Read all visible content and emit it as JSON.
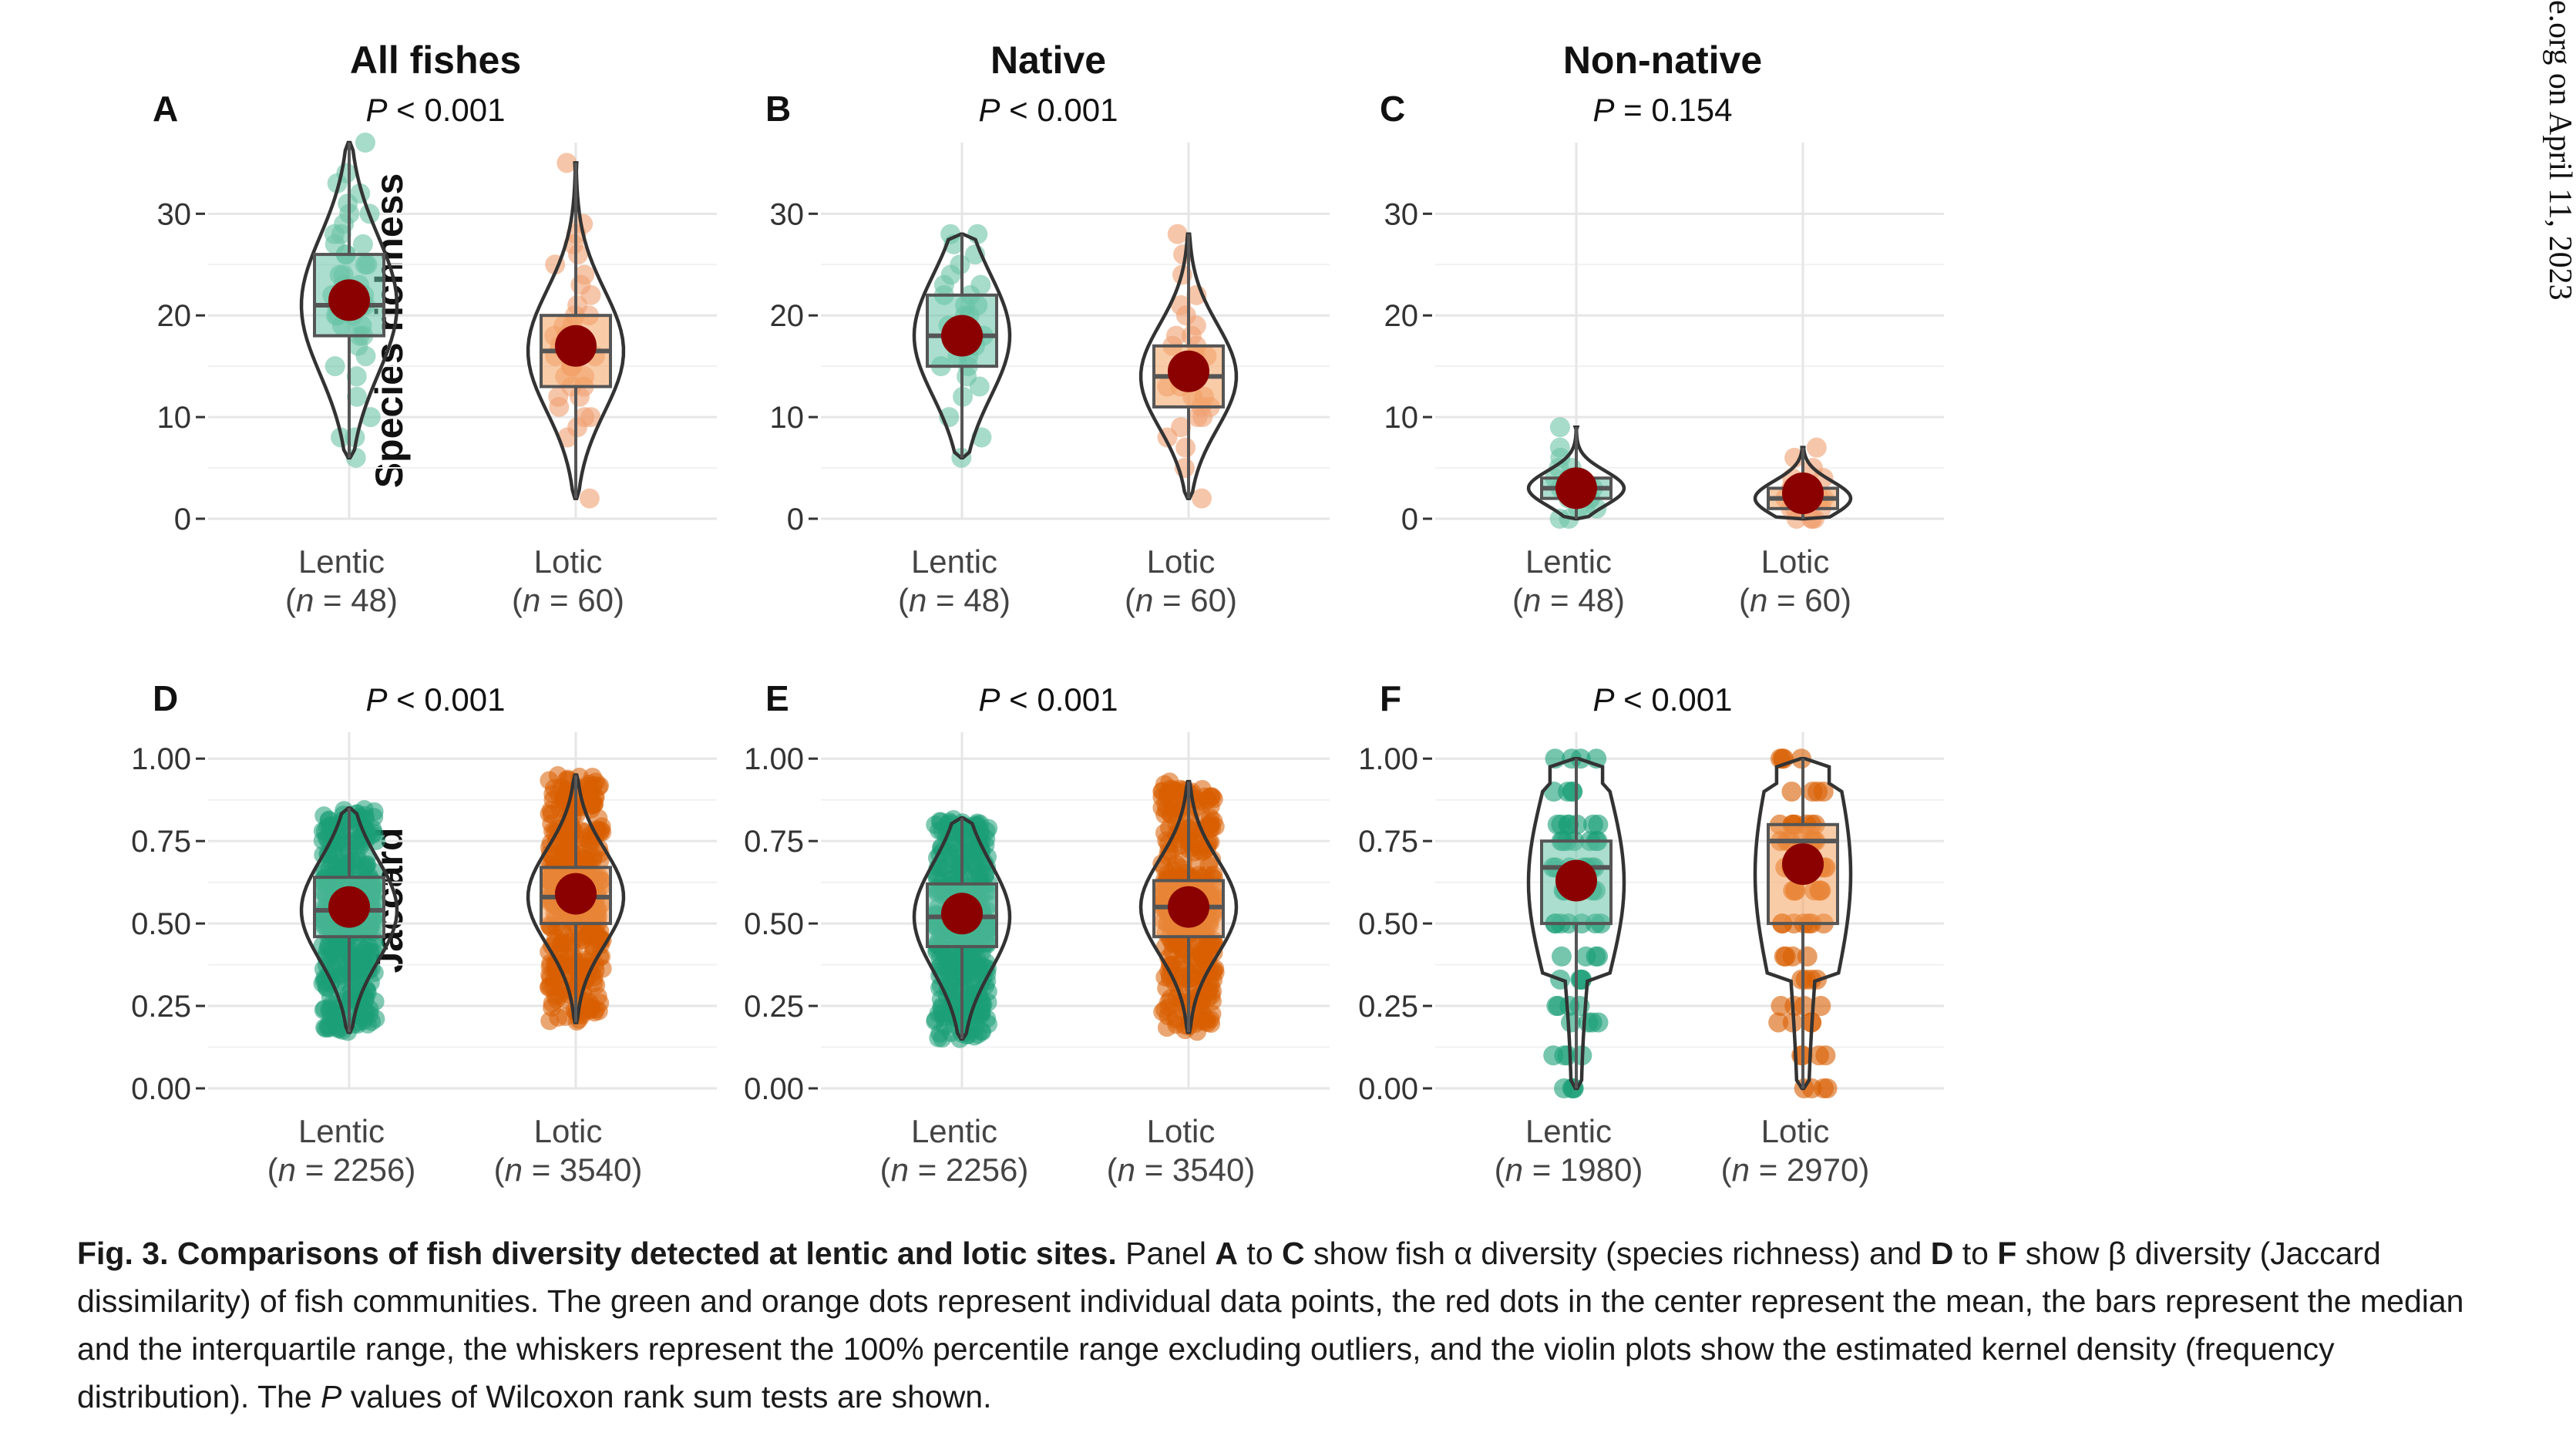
{
  "side_note": "e.org on April 11, 2023",
  "colors": {
    "lentic": "#1b9e77",
    "lotic": "#d95f02",
    "mean": "#8b0000",
    "grid": "#e6e6e6",
    "outline": "#333333"
  },
  "row_labels": {
    "top": "Species richness",
    "bottom": "Jaccard"
  },
  "caption": {
    "title": "Fig. 3. Comparisons of fish diversity detected at lentic and lotic sites.",
    "seg1": " Panel ",
    "b1": "A",
    "seg2": " to ",
    "b2": "C",
    "seg3": " show fish α diversity (species richness) and ",
    "b3": "D",
    "seg4": " to ",
    "b4": "F",
    "seg5": " show β diversity (Jaccard dissimilarity) of fish communities. The green and orange dots represent individual data points, the red dots in the center represent the mean, the bars represent the median and the interquartile range, the whiskers represent the 100% percentile range excluding outliers, and the violin plots show the estimated kernel density (frequency distribution). The ",
    "i1": "P",
    "seg6": " values of Wilcoxon rank sum tests are shown."
  },
  "chart_data": [
    {
      "type": "violin",
      "panel": "A",
      "title": "All fishes",
      "p_prefix": "P",
      "p_text": " < 0.001",
      "ylabel": "Species richness",
      "ylim": [
        0,
        37
      ],
      "yticks": [
        "0",
        "10",
        "20",
        "30"
      ],
      "ytick_values": [
        0,
        10,
        20,
        30
      ],
      "groups": [
        {
          "label": "Lentic",
          "n_label": "n",
          "n_text": " = 48",
          "series": "lentic",
          "min": 6,
          "q1": 18,
          "median": 21,
          "q3": 26,
          "max": 37,
          "mean": 21.5,
          "points": [
            6,
            8,
            8,
            10,
            12,
            14,
            15,
            16,
            17,
            18,
            18,
            19,
            19,
            20,
            20,
            20,
            21,
            21,
            21,
            22,
            22,
            22,
            23,
            23,
            24,
            24,
            25,
            25,
            26,
            26,
            27,
            27,
            28,
            28,
            29,
            30,
            30,
            31,
            32,
            33,
            34,
            37
          ]
        },
        {
          "label": "Lotic",
          "n_label": "n",
          "n_text": " = 60",
          "series": "lotic",
          "min": 2,
          "q1": 13,
          "median": 16.5,
          "q3": 20,
          "max": 35,
          "mean": 17,
          "points": [
            2,
            8,
            9,
            10,
            10,
            11,
            12,
            12,
            13,
            13,
            14,
            14,
            15,
            15,
            15,
            16,
            16,
            16,
            17,
            17,
            17,
            18,
            18,
            18,
            19,
            19,
            20,
            20,
            21,
            22,
            23,
            24,
            25,
            26,
            27,
            28,
            29,
            35
          ]
        }
      ]
    },
    {
      "type": "violin",
      "panel": "B",
      "title": "Native",
      "p_prefix": "P",
      "p_text": " < 0.001",
      "ylabel": "",
      "ylim": [
        0,
        37
      ],
      "yticks": [
        "0",
        "10",
        "20",
        "30"
      ],
      "ytick_values": [
        0,
        10,
        20,
        30
      ],
      "groups": [
        {
          "label": "Lentic",
          "n_label": "n",
          "n_text": " = 48",
          "series": "lentic",
          "min": 6,
          "q1": 15,
          "median": 18,
          "q3": 22,
          "max": 28,
          "mean": 18,
          "points": [
            6,
            8,
            10,
            12,
            13,
            14,
            15,
            15,
            16,
            16,
            17,
            17,
            18,
            18,
            18,
            19,
            19,
            20,
            20,
            21,
            21,
            22,
            22,
            23,
            23,
            24,
            25,
            26,
            27,
            28,
            28
          ]
        },
        {
          "label": "Lotic",
          "n_label": "n",
          "n_text": " = 60",
          "series": "lotic",
          "min": 2,
          "q1": 11,
          "median": 14,
          "q3": 17,
          "max": 28,
          "mean": 14.5,
          "points": [
            2,
            5,
            7,
            8,
            9,
            10,
            10,
            11,
            11,
            12,
            12,
            13,
            13,
            14,
            14,
            14,
            15,
            15,
            15,
            16,
            16,
            17,
            17,
            18,
            18,
            19,
            20,
            21,
            22,
            24,
            26,
            28
          ]
        }
      ]
    },
    {
      "type": "violin",
      "panel": "C",
      "title": "Non-native",
      "p_prefix": "P",
      "p_text": " = 0.154",
      "ylabel": "",
      "ylim": [
        0,
        37
      ],
      "yticks": [
        "0",
        "10",
        "20",
        "30"
      ],
      "ytick_values": [
        0,
        10,
        20,
        30
      ],
      "groups": [
        {
          "label": "Lentic",
          "n_label": "n",
          "n_text": " = 48",
          "series": "lentic",
          "min": 0,
          "q1": 2,
          "median": 3,
          "q3": 4,
          "max": 9,
          "mean": 3,
          "points": [
            0,
            0,
            1,
            1,
            1,
            2,
            2,
            2,
            2,
            3,
            3,
            3,
            3,
            4,
            4,
            4,
            5,
            5,
            6,
            7,
            9
          ]
        },
        {
          "label": "Lotic",
          "n_label": "n",
          "n_text": " = 60",
          "series": "lotic",
          "min": 0,
          "q1": 1,
          "median": 2,
          "q3": 3,
          "max": 7,
          "mean": 2.5,
          "points": [
            0,
            0,
            0,
            0,
            1,
            1,
            1,
            1,
            2,
            2,
            2,
            2,
            3,
            3,
            3,
            4,
            4,
            5,
            6,
            7
          ]
        }
      ]
    },
    {
      "type": "violin",
      "panel": "D",
      "title": "",
      "p_prefix": "P",
      "p_text": " < 0.001",
      "ylabel": "Jaccard",
      "ylim": [
        0,
        1.08
      ],
      "yticks": [
        "0.00",
        "0.25",
        "0.50",
        "0.75",
        "1.00"
      ],
      "ytick_values": [
        0,
        0.25,
        0.5,
        0.75,
        1
      ],
      "groups": [
        {
          "label": "Lentic",
          "n_label": "n",
          "n_text": " = 2256",
          "series": "lentic",
          "min": 0.17,
          "q1": 0.46,
          "median": 0.54,
          "q3": 0.64,
          "max": 0.85,
          "mean": 0.55,
          "dense": true
        },
        {
          "label": "Lotic",
          "n_label": "n",
          "n_text": " = 3540",
          "series": "lotic",
          "min": 0.2,
          "q1": 0.5,
          "median": 0.58,
          "q3": 0.67,
          "max": 0.95,
          "mean": 0.59,
          "dense": true
        }
      ]
    },
    {
      "type": "violin",
      "panel": "E",
      "title": "",
      "p_prefix": "P",
      "p_text": " < 0.001",
      "ylabel": "",
      "ylim": [
        0,
        1.08
      ],
      "yticks": [
        "0.00",
        "0.25",
        "0.50",
        "0.75",
        "1.00"
      ],
      "ytick_values": [
        0,
        0.25,
        0.5,
        0.75,
        1
      ],
      "groups": [
        {
          "label": "Lentic",
          "n_label": "n",
          "n_text": " = 2256",
          "series": "lentic",
          "min": 0.15,
          "q1": 0.43,
          "median": 0.52,
          "q3": 0.62,
          "max": 0.82,
          "mean": 0.53,
          "dense": true
        },
        {
          "label": "Lotic",
          "n_label": "n",
          "n_text": " = 3540",
          "series": "lotic",
          "min": 0.17,
          "q1": 0.46,
          "median": 0.55,
          "q3": 0.63,
          "max": 0.93,
          "mean": 0.55,
          "dense": true
        }
      ]
    },
    {
      "type": "violin",
      "panel": "F",
      "title": "",
      "p_prefix": "P",
      "p_text": " < 0.001",
      "ylabel": "",
      "ylim": [
        0,
        1.08
      ],
      "yticks": [
        "0.00",
        "0.25",
        "0.50",
        "0.75",
        "1.00"
      ],
      "ytick_values": [
        0,
        0.25,
        0.5,
        0.75,
        1
      ],
      "groups": [
        {
          "label": "Lentic",
          "n_label": "n",
          "n_text": " = 1980",
          "series": "lentic",
          "min": 0,
          "q1": 0.5,
          "median": 0.67,
          "q3": 0.75,
          "max": 1,
          "mean": 0.63,
          "discrete": true
        },
        {
          "label": "Lotic",
          "n_label": "n",
          "n_text": " = 2970",
          "series": "lotic",
          "min": 0,
          "q1": 0.5,
          "median": 0.75,
          "q3": 0.8,
          "max": 1,
          "mean": 0.68,
          "discrete": true
        }
      ]
    }
  ]
}
